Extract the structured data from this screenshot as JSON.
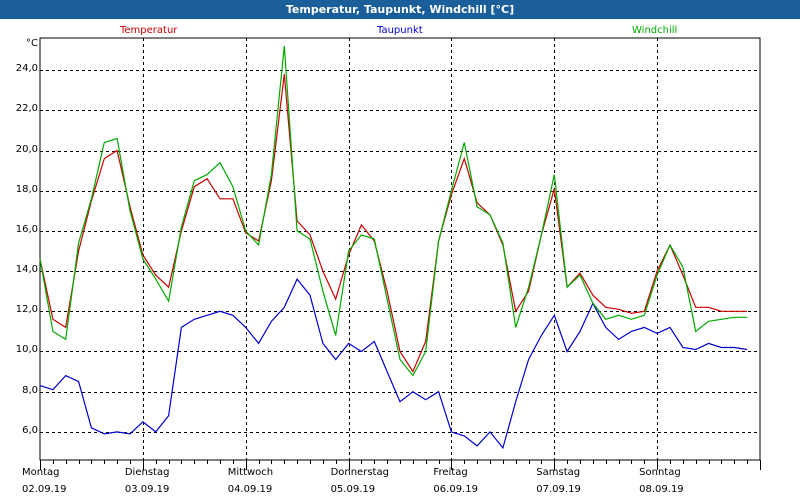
{
  "window": {
    "title": "Temperatur, Taupunkt, Windchill [°C]"
  },
  "colors": {
    "title_bar": "#1a5f9a",
    "temperature": "#cc0000",
    "dewpoint": "#0000cc",
    "windchill": "#00aa00",
    "grid": "#000000"
  },
  "chart_data": {
    "type": "line",
    "unit": "°C",
    "ylim": [
      4.6,
      25.6
    ],
    "yticks": [
      "6,0",
      "8,0",
      "10,0",
      "12,0",
      "14,0",
      "16,0",
      "18,0",
      "20,0",
      "22,0",
      "24,0"
    ],
    "ytick_values": [
      6,
      8,
      10,
      12,
      14,
      16,
      18,
      20,
      22,
      24
    ],
    "grid": true,
    "legend": "top",
    "days": [
      {
        "name": "Montag",
        "date": "02.09.19"
      },
      {
        "name": "Dienstag",
        "date": "03.09.19"
      },
      {
        "name": "Mittwoch",
        "date": "04.09.19"
      },
      {
        "name": "Donnerstag",
        "date": "05.09.19"
      },
      {
        "name": "Freitag",
        "date": "06.09.19"
      },
      {
        "name": "Samstag",
        "date": "07.09.19"
      },
      {
        "name": "Sonntag",
        "date": "08.09.19"
      }
    ],
    "x_hours": [
      0,
      3,
      6,
      9,
      12,
      15,
      18,
      21,
      24,
      27,
      30,
      33,
      36,
      39,
      42,
      45,
      48,
      51,
      54,
      57,
      60,
      63,
      66,
      69,
      72,
      75,
      78,
      81,
      84,
      87,
      90,
      93,
      96,
      99,
      102,
      105,
      108,
      111,
      114,
      117,
      120,
      123,
      126,
      129,
      132,
      135,
      138,
      141,
      144,
      147,
      150,
      153,
      156,
      159,
      162,
      165
    ],
    "series": [
      {
        "name": "Temperatur",
        "color": "#cc0000",
        "values": [
          14.6,
          11.6,
          11.2,
          15.0,
          17.5,
          19.6,
          20.0,
          17.2,
          14.8,
          13.8,
          13.2,
          16.0,
          18.2,
          18.6,
          17.6,
          17.6,
          15.9,
          15.5,
          18.5,
          23.8,
          16.5,
          15.8,
          14.0,
          12.6,
          14.8,
          16.3,
          15.5,
          13.0,
          10.0,
          9.0,
          10.5,
          15.5,
          17.8,
          19.6,
          17.4,
          16.8,
          15.3,
          12.0,
          13.0,
          15.8,
          18.1,
          13.2,
          13.9,
          12.8,
          12.2,
          12.1,
          11.9,
          12.0,
          14.0,
          15.3,
          13.8,
          12.2,
          12.2,
          12.0,
          12.0,
          12.0
        ],
        "dash": "solid"
      },
      {
        "name": "Taupunkt",
        "color": "#0000cc",
        "values": [
          8.3,
          8.1,
          8.8,
          8.5,
          6.2,
          5.9,
          6.0,
          5.9,
          6.5,
          6.0,
          6.8,
          11.2,
          11.6,
          11.8,
          12.0,
          11.8,
          11.2,
          10.4,
          11.5,
          12.2,
          13.6,
          12.8,
          10.4,
          9.6,
          10.4,
          10.0,
          10.5,
          9.0,
          7.5,
          8.0,
          7.6,
          8.0,
          6.0,
          5.8,
          5.3,
          6.0,
          5.2,
          7.5,
          9.6,
          10.8,
          11.8,
          10.0,
          11.0,
          12.4,
          11.2,
          10.6,
          11.0,
          11.2,
          10.9,
          11.2,
          10.2,
          10.1,
          10.4,
          10.2,
          10.2,
          10.1
        ],
        "dash": "solid"
      },
      {
        "name": "Windchill",
        "color": "#00aa00",
        "values": [
          14.6,
          11.0,
          10.6,
          15.4,
          17.6,
          20.4,
          20.6,
          17.0,
          14.6,
          13.6,
          12.5,
          16.2,
          18.5,
          18.8,
          19.4,
          18.2,
          16.0,
          15.3,
          18.8,
          25.2,
          16.0,
          15.6,
          13.0,
          10.8,
          15.0,
          15.8,
          15.6,
          12.6,
          9.6,
          8.8,
          10.0,
          15.5,
          18.0,
          20.4,
          17.2,
          16.8,
          15.4,
          11.2,
          13.2,
          15.8,
          18.8,
          13.2,
          13.8,
          12.4,
          11.6,
          11.8,
          11.6,
          11.8,
          13.8,
          15.3,
          14.2,
          11.0,
          11.5,
          11.6,
          11.7,
          11.7
        ],
        "dash": "solid"
      }
    ]
  }
}
